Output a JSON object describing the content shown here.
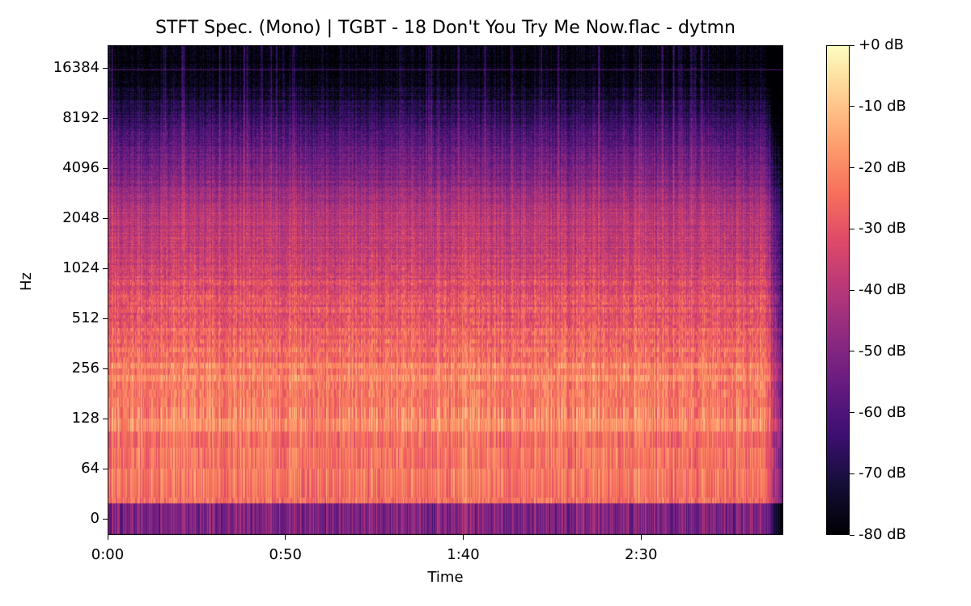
{
  "chart_data": {
    "type": "heatmap",
    "title": "STFT Spec. (Mono) | TGBT - 18 Don't You Try Me Now.flac - dytmn",
    "xlabel": "Time",
    "ylabel": "Hz",
    "x_ticks": [
      {
        "value": 0,
        "label": "0:00"
      },
      {
        "value": 50,
        "label": "0:50"
      },
      {
        "value": 100,
        "label": "1:40"
      },
      {
        "value": 150,
        "label": "2:30"
      }
    ],
    "xlim_seconds": [
      0,
      190
    ],
    "y_scale": "log2 (symlog)",
    "y_ticks": [
      {
        "value": 16384,
        "label": "16384"
      },
      {
        "value": 8192,
        "label": "8192"
      },
      {
        "value": 4096,
        "label": "4096"
      },
      {
        "value": 2048,
        "label": "2048"
      },
      {
        "value": 1024,
        "label": "1024"
      },
      {
        "value": 512,
        "label": "512"
      },
      {
        "value": 256,
        "label": "256"
      },
      {
        "value": 128,
        "label": "128"
      },
      {
        "value": 64,
        "label": "64"
      },
      {
        "value": 0,
        "label": "0"
      }
    ],
    "ylim_hz": [
      0,
      22050
    ],
    "colormap": "magma",
    "colorbar": {
      "range_db": [
        -80,
        0
      ],
      "ticks": [
        {
          "value": 0,
          "label": "+0 dB"
        },
        {
          "value": -10,
          "label": "-10 dB"
        },
        {
          "value": -20,
          "label": "-20 dB"
        },
        {
          "value": -30,
          "label": "-30 dB"
        },
        {
          "value": -40,
          "label": "-40 dB"
        },
        {
          "value": -50,
          "label": "-50 dB"
        },
        {
          "value": -60,
          "label": "-60 dB"
        },
        {
          "value": -70,
          "label": "-70 dB"
        },
        {
          "value": -80,
          "label": "-80 dB"
        }
      ]
    },
    "grid": false,
    "observations": "Energy strongest from ~64 Hz to ~512 Hz (-10 to -25 dB), falling off above 4096 Hz; faint line near 16384 Hz; near-silent above ~16 kHz"
  },
  "colors": [
    "#000004",
    "#140e36",
    "#3b0f70",
    "#641a80",
    "#8c2981",
    "#b73779",
    "#de4968",
    "#f7705c",
    "#fe9f6d",
    "#fecf92",
    "#fcfdbf"
  ]
}
